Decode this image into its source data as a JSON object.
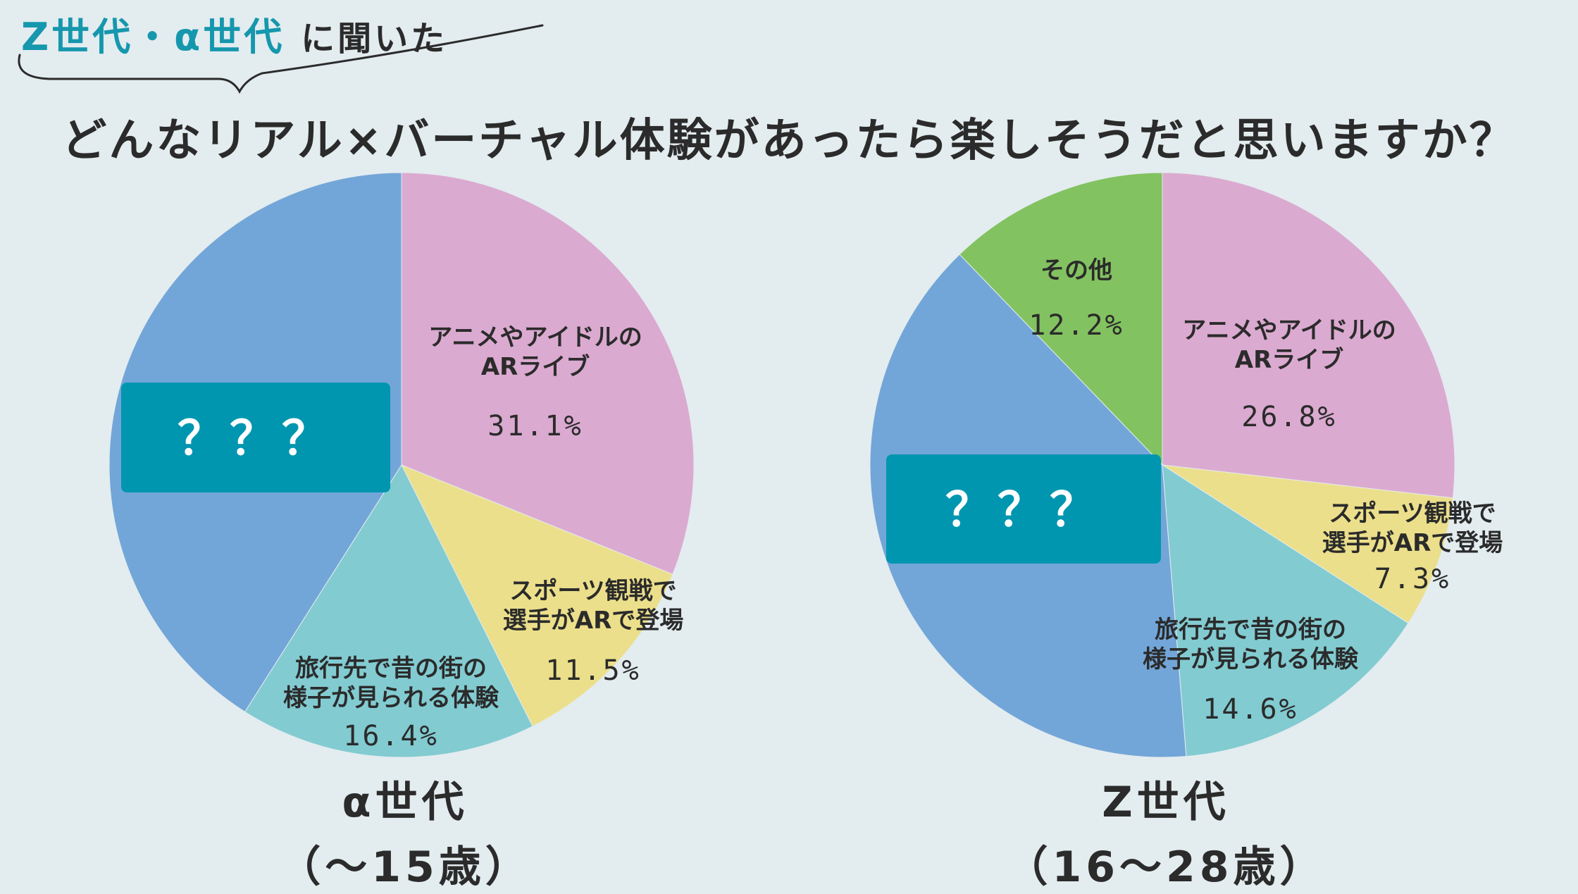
{
  "header": {
    "tag_highlight": "Z世代・α世代",
    "tag_rest": "に聞いた"
  },
  "title": "どんなリアル×バーチャル体験があったら楽しそうだと思いますか？",
  "colors": {
    "background": "#e3ecef",
    "accent": "#1597ad",
    "hidden_box": "#0096b0",
    "slice_anime": "#dbaad0",
    "slice_sports": "#ebdf8b",
    "slice_travel": "#82cbd1",
    "slice_hidden": "#73a6d8",
    "slice_other": "#83c260"
  },
  "chart_data": [
    {
      "type": "pie",
      "title": "α世代",
      "subtitle": "（～15歳）",
      "hidden_label": "？？？",
      "slices": [
        {
          "key": "anime",
          "label_lines": [
            "アニメやアイドルの",
            "ARライブ"
          ],
          "value": 31.1,
          "value_text": "31.1%",
          "color": "#dbaad0"
        },
        {
          "key": "sports",
          "label_lines": [
            "スポーツ観戦で",
            "選手がARで登場"
          ],
          "value": 11.5,
          "value_text": "11.5%",
          "color": "#ebdf8b"
        },
        {
          "key": "travel",
          "label_lines": [
            "旅行先で昔の街の",
            "様子が見られる体験"
          ],
          "value": 16.4,
          "value_text": "16.4%",
          "color": "#82cbd1"
        },
        {
          "key": "hidden",
          "label_lines": [],
          "value": 41.0,
          "value_text": "",
          "color": "#73a6d8",
          "hidden": true
        }
      ]
    },
    {
      "type": "pie",
      "title": "Z世代",
      "subtitle": "（16～28歳）",
      "hidden_label": "？？？",
      "slices": [
        {
          "key": "anime",
          "label_lines": [
            "アニメやアイドルの",
            "ARライブ"
          ],
          "value": 26.8,
          "value_text": "26.8%",
          "color": "#dbaad0"
        },
        {
          "key": "sports",
          "label_lines": [
            "スポーツ観戦で",
            "選手がARで登場"
          ],
          "value": 7.3,
          "value_text": "7.3%",
          "color": "#ebdf8b"
        },
        {
          "key": "travel",
          "label_lines": [
            "旅行先で昔の街の",
            "様子が見られる体験"
          ],
          "value": 14.6,
          "value_text": "14.6%",
          "color": "#82cbd1"
        },
        {
          "key": "hidden",
          "label_lines": [],
          "value": 39.1,
          "value_text": "",
          "color": "#73a6d8",
          "hidden": true
        },
        {
          "key": "other",
          "label_lines": [
            "その他"
          ],
          "value": 12.2,
          "value_text": "12.2%",
          "color": "#83c260"
        }
      ]
    }
  ]
}
